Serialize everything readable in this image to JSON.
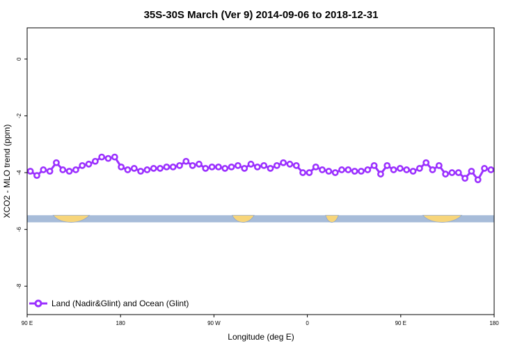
{
  "chart_data": {
    "type": "line",
    "title": "35S-30S March (Ver 9)   2014-09-06 to 2018-12-31",
    "xlabel": "Longitude (deg E)",
    "ylabel": "XCO2 - MLO trend (ppm)",
    "xlim": [
      90,
      450
    ],
    "ylim": [
      -9.0,
      1.1
    ],
    "x_ticks": [
      {
        "value": 90,
        "label": "90 E"
      },
      {
        "value": 162,
        "label": "180"
      },
      {
        "value": 234,
        "label": "90 W"
      },
      {
        "value": 306,
        "label": "0"
      },
      {
        "value": 378,
        "label": "90 E"
      },
      {
        "value": 450,
        "label": "180"
      }
    ],
    "y_ticks": [
      {
        "value": 0,
        "label": "0"
      },
      {
        "value": -2,
        "label": "-2"
      },
      {
        "value": -4,
        "label": "-4"
      },
      {
        "value": -6,
        "label": "-6"
      },
      {
        "value": -8,
        "label": "-8"
      }
    ],
    "grid": false,
    "legend_position": "bottom-left",
    "series": [
      {
        "name": "Land (Nadir&Glint) and Ocean (Glint)",
        "color": "#9b30ff",
        "x": [
          92.5,
          97.5,
          102.5,
          107.5,
          112.5,
          117.5,
          122.5,
          127.5,
          132.5,
          137.5,
          142.5,
          147.5,
          152.5,
          157.5,
          162.5,
          167.5,
          172.5,
          177.5,
          182.5,
          187.5,
          192.5,
          197.5,
          202.5,
          207.5,
          212.5,
          217.5,
          222.5,
          227.5,
          232.5,
          237.5,
          242.5,
          247.5,
          252.5,
          257.5,
          262.5,
          267.5,
          272.5,
          277.5,
          282.5,
          287.5,
          292.5,
          297.5,
          302.5,
          307.5,
          312.5,
          317.5,
          322.5,
          327.5,
          332.5,
          337.5,
          342.5,
          347.5,
          352.5,
          357.5,
          362.5,
          367.5,
          372.5,
          377.5,
          382.5,
          387.5,
          392.5,
          397.5,
          402.5,
          407.5,
          412.5,
          417.5,
          422.5,
          427.5,
          432.5,
          437.5,
          442.5,
          447.5
        ],
        "y": [
          -3.95,
          -4.1,
          -3.9,
          -3.95,
          -3.65,
          -3.9,
          -3.95,
          -3.9,
          -3.75,
          -3.7,
          -3.6,
          -3.45,
          -3.5,
          -3.45,
          -3.8,
          -3.9,
          -3.85,
          -3.95,
          -3.9,
          -3.85,
          -3.85,
          -3.8,
          -3.8,
          -3.75,
          -3.6,
          -3.75,
          -3.7,
          -3.85,
          -3.8,
          -3.8,
          -3.85,
          -3.8,
          -3.75,
          -3.85,
          -3.7,
          -3.8,
          -3.75,
          -3.85,
          -3.75,
          -3.65,
          -3.7,
          -3.75,
          -4.0,
          -4.0,
          -3.8,
          -3.9,
          -3.95,
          -4.0,
          -3.9,
          -3.9,
          -3.95,
          -3.95,
          -3.9,
          -3.75,
          -4.05,
          -3.75,
          -3.9,
          -3.85,
          -3.9,
          -3.95,
          -3.85,
          -3.65,
          -3.9,
          -3.75,
          -4.05,
          -4.0,
          -4.0,
          -4.2,
          -3.95,
          -4.25,
          -3.85,
          -3.9
        ]
      }
    ],
    "map_strip": {
      "ocean_color": "#a7bcd9",
      "land_color": "#f7d57a",
      "land_outline_color": "#8ea6cc",
      "y_range": [
        -5.75,
        -5.5
      ],
      "land_segments": [
        [
          110,
          138
        ],
        [
          248,
          265
        ],
        [
          320,
          330
        ],
        [
          395,
          425
        ]
      ]
    }
  }
}
